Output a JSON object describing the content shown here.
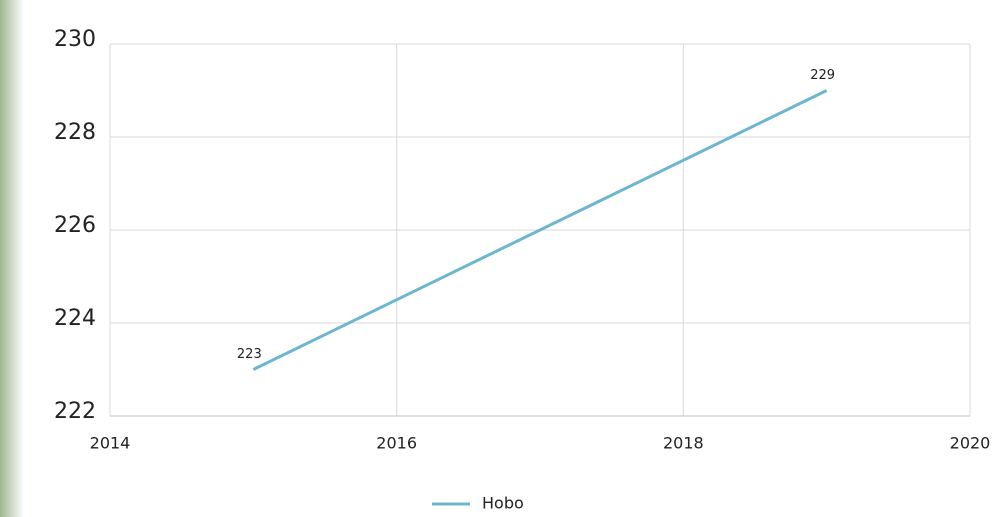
{
  "chart_data": {
    "type": "line",
    "x": [
      2015,
      2019
    ],
    "series": [
      {
        "name": "Hobo",
        "color": "#6cb6d0",
        "values": [
          223,
          229
        ]
      }
    ],
    "xlim": [
      2014,
      2020
    ],
    "xticks": [
      2014,
      2016,
      2018,
      2020
    ],
    "ylim": [
      222,
      230
    ],
    "yticks": [
      222,
      224,
      226,
      228,
      230
    ],
    "grid": true,
    "legend": "bottom",
    "data_labels": true
  }
}
